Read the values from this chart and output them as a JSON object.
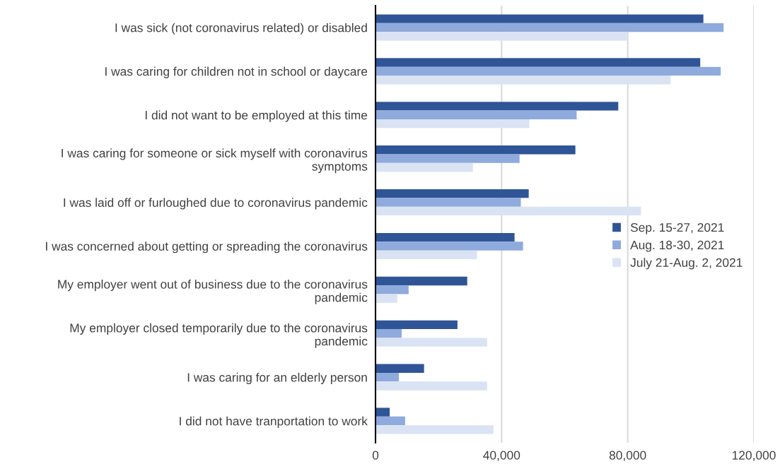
{
  "chart_data": {
    "type": "bar",
    "orientation": "horizontal",
    "categories": [
      "I was sick (not coronavirus related) or disabled",
      "I was caring for children not in school or daycare",
      "I did not want to be employed at this time",
      "I was caring for someone or sick myself with coronavirus symptoms",
      "I was laid off or furloughed due to coronavirus pandemic",
      "I was concerned about getting or spreading the coronavirus",
      "My employer went out of business due to the coronavirus pandemic",
      "My employer closed temporarily due to the coronavirus pandemic",
      "I was caring for an elderly person",
      "I did not have tranportation to work"
    ],
    "series": [
      {
        "name": "Sep. 15-27, 2021",
        "color": "#2f5597",
        "values": [
          104000,
          103000,
          77000,
          63400,
          48600,
          44100,
          29100,
          26000,
          15400,
          4500
        ]
      },
      {
        "name": "Aug. 18-30, 2021",
        "color": "#8faadc",
        "values": [
          110400,
          109500,
          63800,
          45700,
          46100,
          46800,
          10500,
          8300,
          7400,
          9400
        ]
      },
      {
        "name": "July 21-Aug. 2, 2021",
        "color": "#dae3f3",
        "values": [
          80000,
          93600,
          48800,
          30900,
          84200,
          32200,
          6900,
          35400,
          35400,
          37400
        ]
      }
    ],
    "xlim": [
      0,
      120000
    ],
    "xticks": [
      {
        "value": 0,
        "label": "0"
      },
      {
        "value": 40000,
        "label": "40,000"
      },
      {
        "value": 80000,
        "label": "80,000"
      },
      {
        "value": 120000,
        "label": "120,000"
      }
    ],
    "grid": "x",
    "legend": "right"
  }
}
